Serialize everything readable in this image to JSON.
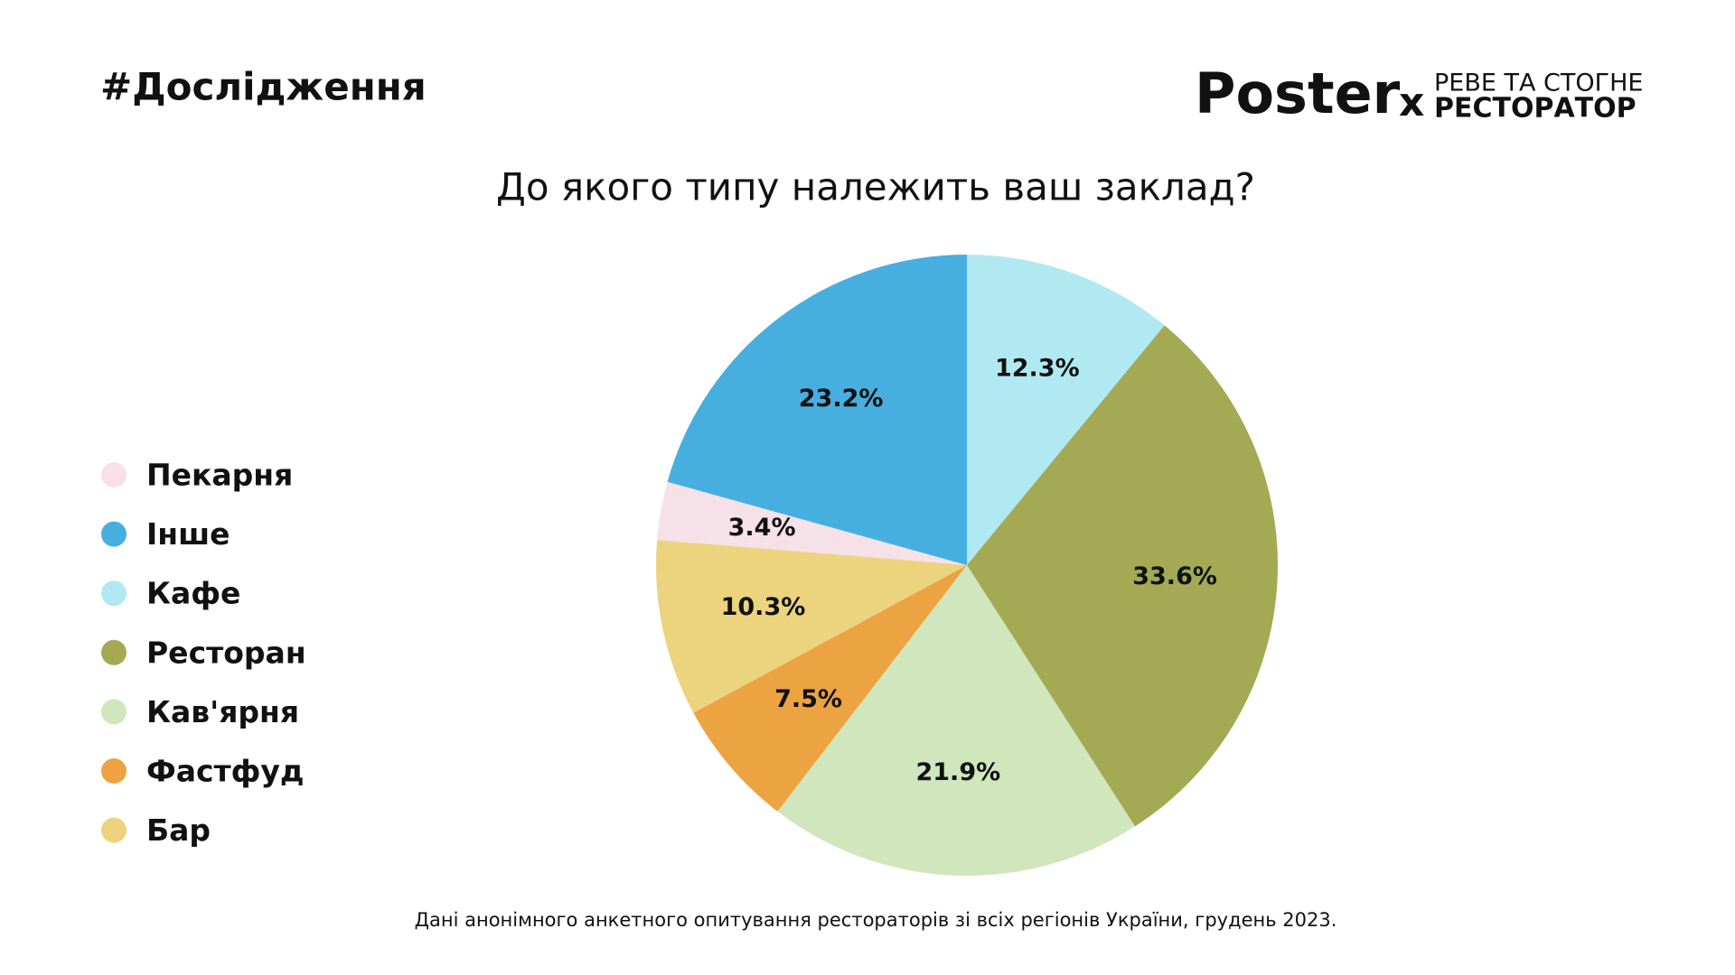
{
  "header": {
    "hashtag": "#Дослідження",
    "logo": {
      "brand": "Poster",
      "separator": "x",
      "partner_line1": "РЕВЕ ТА СТОГНЕ",
      "partner_line2": "РЕСТОРАТОР"
    }
  },
  "chart_data": {
    "type": "pie",
    "title": "До якого типу належить ваш заклад?",
    "categories": [
      "Пекарня",
      "Інше",
      "Кафе",
      "Ресторан",
      "Кав'ярня",
      "Фастфуд",
      "Бар"
    ],
    "values": [
      3.4,
      23.2,
      12.3,
      33.6,
      21.9,
      7.5,
      10.3
    ],
    "value_labels": [
      "3.4%",
      "23.2%",
      "12.3%",
      "33.6%",
      "21.9%",
      "7.5%",
      "10.3%"
    ],
    "colors": [
      "#f7e1e8",
      "#47aee0",
      "#b0e9f2",
      "#a4a954",
      "#d0e7bd",
      "#eca341",
      "#ecd37e"
    ],
    "legend": "left",
    "footnote": "Дані анонімного анкетного опитування рестораторів зі всіх регіонів України, грудень 2023."
  }
}
